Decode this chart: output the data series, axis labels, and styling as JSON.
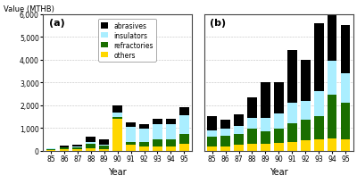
{
  "years": [
    "85",
    "86",
    "87",
    "88",
    "89",
    "90",
    "91",
    "92",
    "93",
    "94",
    "95"
  ],
  "chart_a": {
    "others": [
      30,
      50,
      50,
      100,
      80,
      1400,
      250,
      200,
      200,
      200,
      300
    ],
    "refractories": [
      50,
      80,
      100,
      200,
      150,
      80,
      150,
      200,
      300,
      300,
      450
    ],
    "insulators": [
      10,
      20,
      30,
      80,
      50,
      200,
      650,
      550,
      650,
      650,
      800
    ],
    "abrasives": [
      20,
      70,
      70,
      250,
      200,
      300,
      200,
      200,
      250,
      250,
      350
    ]
  },
  "chart_b": {
    "others": [
      200,
      200,
      250,
      300,
      300,
      350,
      400,
      450,
      500,
      550,
      500
    ],
    "refractories": [
      400,
      450,
      500,
      650,
      550,
      600,
      800,
      900,
      1000,
      1900,
      1600
    ],
    "insulators": [
      300,
      300,
      350,
      500,
      600,
      700,
      900,
      850,
      1100,
      1500,
      1300
    ],
    "abrasives": [
      600,
      400,
      500,
      900,
      1550,
      1350,
      2300,
      1800,
      3000,
      2150,
      2100
    ]
  },
  "colors": {
    "abrasives": "#000000",
    "insulators": "#aaeeff",
    "refractories": "#1a6e00",
    "others": "#ffd700"
  },
  "ylim": [
    0,
    6000
  ],
  "yticks": [
    0,
    1000,
    2000,
    3000,
    4000,
    5000,
    6000
  ],
  "ylabel": "Value (MTHB)",
  "xlabel": "Year",
  "bg_color": "#ffffff",
  "border_color": "#444444"
}
